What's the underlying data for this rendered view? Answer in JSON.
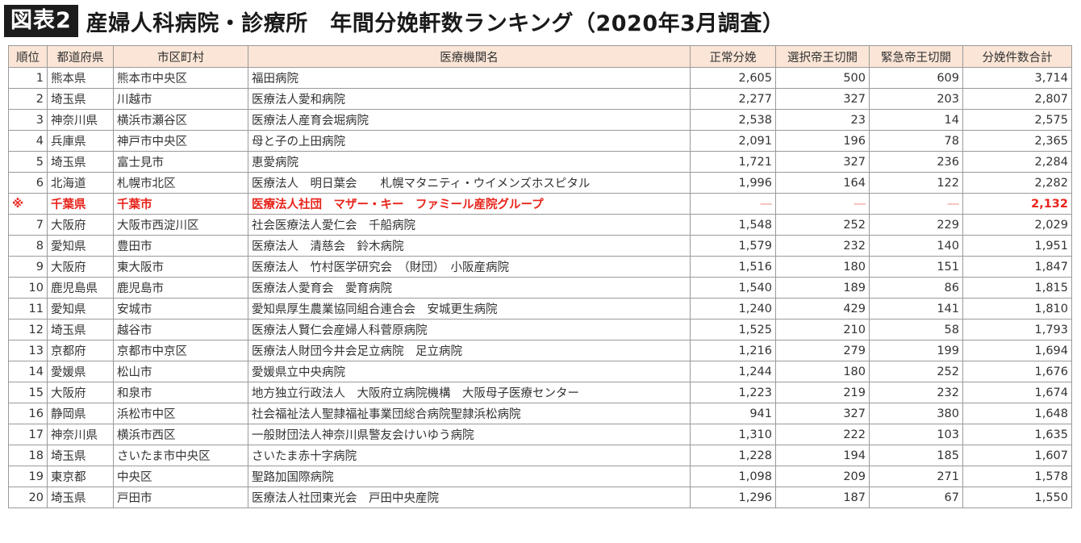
{
  "title": {
    "label": "図表2",
    "text": "産婦人科病院・診療所　年間分娩軒数ランキング（2020年3月調査）"
  },
  "table": {
    "headers": [
      "順位",
      "都道府県",
      "市区町村",
      "医療機関名",
      "正常分娩",
      "選択帝王切開",
      "緊急帝王切開",
      "分娩件数合計"
    ],
    "rows": [
      {
        "rank": "1",
        "pref": "熊本県",
        "city": "熊本市中央区",
        "name": "福田病院",
        "normal": "2,605",
        "elective": "500",
        "emergency": "609",
        "total": "3,714"
      },
      {
        "rank": "2",
        "pref": "埼玉県",
        "city": "川越市",
        "name": "医療法人愛和病院",
        "normal": "2,277",
        "elective": "327",
        "emergency": "203",
        "total": "2,807"
      },
      {
        "rank": "3",
        "pref": "神奈川県",
        "city": "横浜市瀬谷区",
        "name": "医療法人産育会堀病院",
        "normal": "2,538",
        "elective": "23",
        "emergency": "14",
        "total": "2,575"
      },
      {
        "rank": "4",
        "pref": "兵庫県",
        "city": "神戸市中央区",
        "name": "母と子の上田病院",
        "normal": "2,091",
        "elective": "196",
        "emergency": "78",
        "total": "2,365"
      },
      {
        "rank": "5",
        "pref": "埼玉県",
        "city": "富士見市",
        "name": "恵愛病院",
        "normal": "1,721",
        "elective": "327",
        "emergency": "236",
        "total": "2,284"
      },
      {
        "rank": "6",
        "pref": "北海道",
        "city": "札幌市北区",
        "name": "医療法人　明日葉会　　札幌マタニティ・ウイメンズホスピタル",
        "normal": "1,996",
        "elective": "164",
        "emergency": "122",
        "total": "2,282"
      },
      {
        "rank": "※",
        "pref": "千葉県",
        "city": "千葉市",
        "name": "医療法人社団　マザー・キー　ファミール産院グループ",
        "normal": "―",
        "elective": "―",
        "emergency": "―",
        "total": "2,132",
        "special": true
      },
      {
        "rank": "7",
        "pref": "大阪府",
        "city": "大阪市西淀川区",
        "name": "社会医療法人愛仁会　千船病院",
        "normal": "1,548",
        "elective": "252",
        "emergency": "229",
        "total": "2,029"
      },
      {
        "rank": "8",
        "pref": "愛知県",
        "city": "豊田市",
        "name": "医療法人　清慈会　鈴木病院",
        "normal": "1,579",
        "elective": "232",
        "emergency": "140",
        "total": "1,951"
      },
      {
        "rank": "9",
        "pref": "大阪府",
        "city": "東大阪市",
        "name": "医療法人　竹村医学研究会　（財団）　小阪産病院",
        "normal": "1,516",
        "elective": "180",
        "emergency": "151",
        "total": "1,847"
      },
      {
        "rank": "10",
        "pref": "鹿児島県",
        "city": "鹿児島市",
        "name": "医療法人愛育会　愛育病院",
        "normal": "1,540",
        "elective": "189",
        "emergency": "86",
        "total": "1,815"
      },
      {
        "rank": "11",
        "pref": "愛知県",
        "city": "安城市",
        "name": "愛知県厚生農業協同組合連合会　安城更生病院",
        "normal": "1,240",
        "elective": "429",
        "emergency": "141",
        "total": "1,810"
      },
      {
        "rank": "12",
        "pref": "埼玉県",
        "city": "越谷市",
        "name": "医療法人賢仁会産婦人科菅原病院",
        "normal": "1,525",
        "elective": "210",
        "emergency": "58",
        "total": "1,793"
      },
      {
        "rank": "13",
        "pref": "京都府",
        "city": "京都市中京区",
        "name": "医療法人財団今井会足立病院　足立病院",
        "normal": "1,216",
        "elective": "279",
        "emergency": "199",
        "total": "1,694"
      },
      {
        "rank": "14",
        "pref": "愛媛県",
        "city": "松山市",
        "name": "愛媛県立中央病院",
        "normal": "1,244",
        "elective": "180",
        "emergency": "252",
        "total": "1,676"
      },
      {
        "rank": "15",
        "pref": "大阪府",
        "city": "和泉市",
        "name": "地方独立行政法人　大阪府立病院機構　大阪母子医療センター",
        "normal": "1,223",
        "elective": "219",
        "emergency": "232",
        "total": "1,674"
      },
      {
        "rank": "16",
        "pref": "静岡県",
        "city": "浜松市中区",
        "name": "社会福祉法人聖隷福祉事業団総合病院聖隷浜松病院",
        "normal": "941",
        "elective": "327",
        "emergency": "380",
        "total": "1,648"
      },
      {
        "rank": "17",
        "pref": "神奈川県",
        "city": "横浜市西区",
        "name": "一般財団法人神奈川県警友会けいゆう病院",
        "normal": "1,310",
        "elective": "222",
        "emergency": "103",
        "total": "1,635"
      },
      {
        "rank": "18",
        "pref": "埼玉県",
        "city": "さいたま市中央区",
        "name": "さいたま赤十字病院",
        "normal": "1,228",
        "elective": "194",
        "emergency": "185",
        "total": "1,607"
      },
      {
        "rank": "19",
        "pref": "東京都",
        "city": "中央区",
        "name": "聖路加国際病院",
        "normal": "1,098",
        "elective": "209",
        "emergency": "271",
        "total": "1,578"
      },
      {
        "rank": "20",
        "pref": "埼玉県",
        "city": "戸田市",
        "name": "医療法人社団東光会　戸田中央産院",
        "normal": "1,296",
        "elective": "187",
        "emergency": "67",
        "total": "1,550"
      }
    ]
  }
}
